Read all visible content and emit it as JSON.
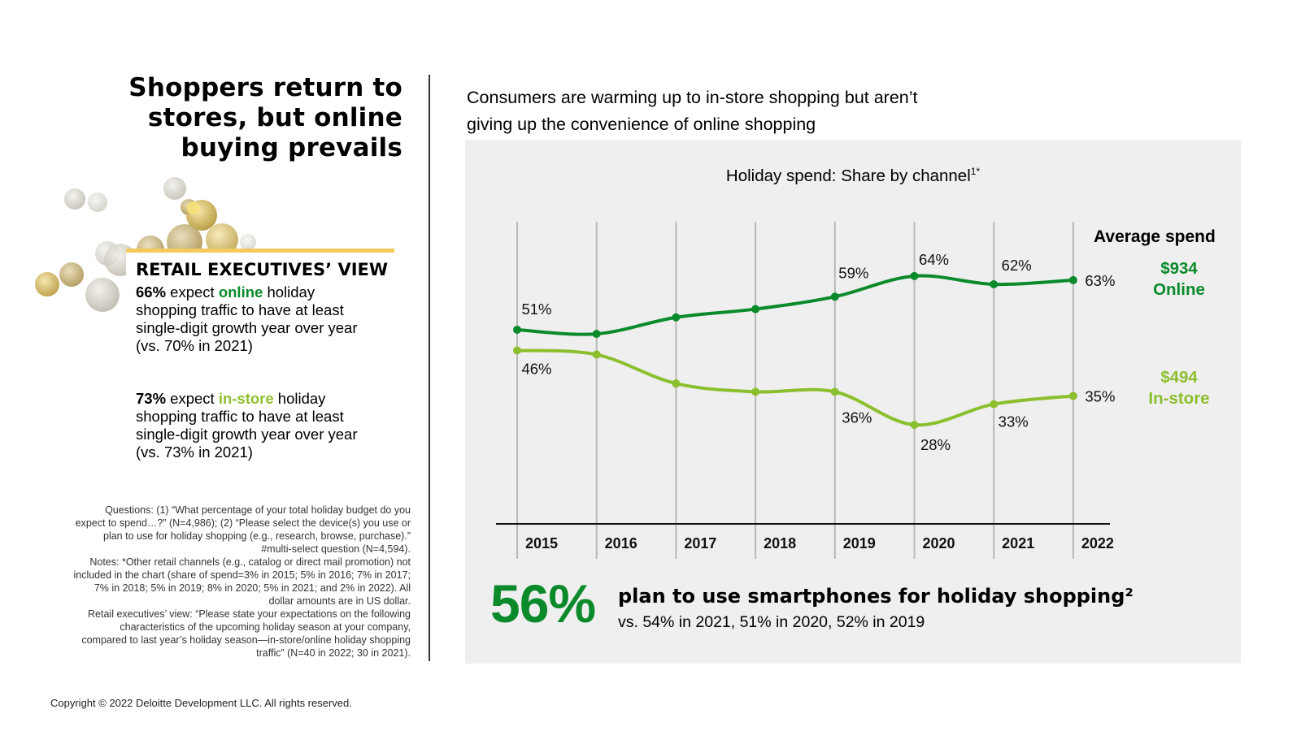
{
  "headline": {
    "line1": "Shoppers return to",
    "line2": "stores, but online",
    "line3": "buying prevails"
  },
  "retail_view": {
    "title": "RETAIL EXECUTIVES’ VIEW",
    "stat1": {
      "pct": "66%",
      "pre": " expect ",
      "keyword": "online",
      "post": " holiday",
      "line2": "shopping traffic to have at least",
      "line3": "single-digit growth year over year",
      "line4": "(vs. 70% in 2021)"
    },
    "stat2": {
      "pct": "73%",
      "pre": " expect ",
      "keyword": "in-store",
      "post": " holiday",
      "line2": "shopping traffic to have at least",
      "line3": "single-digit growth year over year",
      "line4": "(vs. 73% in 2021)"
    }
  },
  "footnotes": [
    "Questions: (1) “What percentage of your total holiday budget do you",
    "expect to spend…?” (N=4,986); (2) “Please select the device(s) you use or",
    "plan to use for holiday shopping (e.g., research, browse, purchase).”",
    "#multi-select question (N=4,594).",
    "Notes: *Other retail channels (e.g., catalog or direct mail promotion) not",
    "included in the chart (share of spend=3% in 2015; 5% in 2016; 7% in 2017;",
    "7% in 2018; 5% in 2019; 8% in 2020; 5% in 2021; and 2% in 2022). All",
    "dollar amounts are in US dollar.",
    "Retail executives’ view: “Please state your expectations on the following",
    "characteristics of the upcoming holiday season at your company,",
    "compared to last year’s holiday season—in-store/online holiday shopping",
    "traffic” (N=40 in 2022; 30 in 2021)."
  ],
  "subtitle": {
    "line1": "Consumers are warming up to in-store shopping but aren’t",
    "line2": "giving up the convenience of online shopping"
  },
  "average_spend": {
    "heading": "Average spend",
    "online_value": "$934",
    "online_label": "Online",
    "instore_value": "$494",
    "instore_label": "In-store"
  },
  "callout": {
    "big_number": "56%",
    "text": "plan to use smartphones for holiday shopping²",
    "sub": "vs. 54% in 2021, 51% in 2020, 52% in 2019"
  },
  "copyright": "Copyright © 2022 Deloitte Development LLC. All rights reserved.",
  "colors": {
    "online": "#0a8a2b",
    "instore": "#8cbf2e",
    "gold": "#f6c95b",
    "panel": "#efefef",
    "gridline": "#b8b8b8"
  },
  "chart_data": {
    "type": "line",
    "title": "Holiday spend: Share by channel",
    "title_superscript": "1*",
    "categories": [
      "2015",
      "2016",
      "2017",
      "2018",
      "2019",
      "2020",
      "2021",
      "2022"
    ],
    "series": [
      {
        "name": "Online",
        "values": [
          51,
          50,
          54,
          56,
          59,
          64,
          62,
          63
        ],
        "labels": [
          "51%",
          "",
          "",
          "",
          "59%",
          "64%",
          "62%",
          "63%"
        ]
      },
      {
        "name": "In-store",
        "values": [
          46,
          45,
          38,
          36,
          36,
          28,
          33,
          35
        ],
        "labels": [
          "46%",
          "",
          "",
          "",
          "36%",
          "28%",
          "33%",
          "35%"
        ]
      }
    ],
    "xlabel": "",
    "ylabel": "",
    "ylim": [
      0,
      70
    ],
    "grid": "vertical",
    "legend": "right"
  }
}
